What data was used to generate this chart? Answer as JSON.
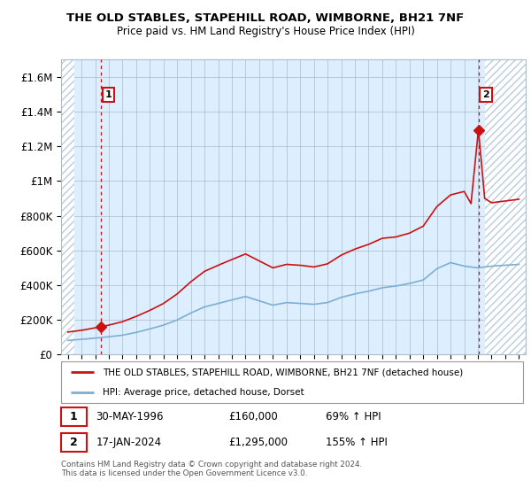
{
  "title": "THE OLD STABLES, STAPEHILL ROAD, WIMBORNE, BH21 7NF",
  "subtitle": "Price paid vs. HM Land Registry's House Price Index (HPI)",
  "ylim": [
    0,
    1700000
  ],
  "yticks": [
    0,
    200000,
    400000,
    600000,
    800000,
    1000000,
    1200000,
    1400000,
    1600000
  ],
  "ytick_labels": [
    "£0",
    "£200K",
    "£400K",
    "£600K",
    "£800K",
    "£1M",
    "£1.2M",
    "£1.4M",
    "£1.6M"
  ],
  "xlim_start": 1993.5,
  "xlim_end": 2027.5,
  "hpi_color": "#7bafd4",
  "price_color": "#cc1111",
  "plot_bg_color": "#ddeeff",
  "hatch_color": "#bbccdd",
  "grid_color": "#aabbcc",
  "point1_x": 1996.41,
  "point1_y": 160000,
  "point2_x": 2024.04,
  "point2_y": 1295000,
  "hatch_left_end": 1994.5,
  "hatch_right_start": 2024.5,
  "legend_line1": "THE OLD STABLES, STAPEHILL ROAD, WIMBORNE, BH21 7NF (detached house)",
  "legend_line2": "HPI: Average price, detached house, Dorset",
  "footer": "Contains HM Land Registry data © Crown copyright and database right 2024.\nThis data is licensed under the Open Government Licence v3.0."
}
